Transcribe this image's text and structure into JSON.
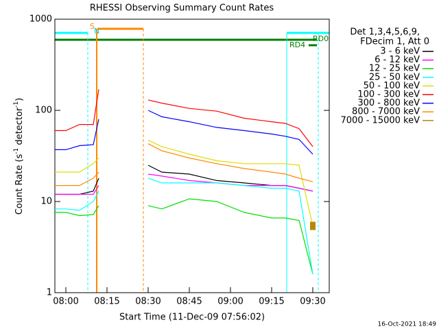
{
  "chart_data": {
    "type": "line",
    "title": "RHESSI Observing Summary Count Rates",
    "xlabel": "Start Time (11-Dec-09 07:56:02)",
    "ylabel": [
      "Count Rate (s",
      "-1",
      " detector",
      "-1",
      ")"
    ],
    "log_y": true,
    "ylim": [
      1,
      1000
    ],
    "yticks": [
      1,
      10,
      100,
      1000
    ],
    "xlim": [
      "07:56",
      "09:36"
    ],
    "xticks": [
      "08:00",
      "08:15",
      "08:30",
      "08:45",
      "09:00",
      "09:15",
      "09:30"
    ],
    "x": [
      "07:56",
      "08:00",
      "08:05",
      "08:10",
      "08:12",
      "08:20",
      "08:30",
      "08:35",
      "08:45",
      "08:55",
      "09:05",
      "09:15",
      "09:20",
      "09:25",
      "09:30"
    ],
    "legend_header": [
      "Det 1,3,4,5,6,9,",
      "FDecim 1, Att 0"
    ],
    "annotations": [
      "S",
      "N",
      "RD4",
      "RD0"
    ],
    "footer": "16-Oct-2021 18:49",
    "series": [
      {
        "name": "3 - 6 keV",
        "color": "#000000",
        "values": [
          12,
          12,
          12,
          13,
          18,
          null,
          25,
          21,
          20,
          17,
          16,
          15,
          15,
          14,
          13
        ]
      },
      {
        "name": "6 - 12 keV",
        "color": "#ff00ff",
        "values": [
          12,
          12,
          12,
          12,
          15,
          null,
          20,
          19,
          17,
          16,
          15,
          15,
          15,
          14,
          13
        ]
      },
      {
        "name": "12 - 25 keV",
        "color": "#00dd00",
        "values": [
          7.6,
          7.6,
          7,
          7.2,
          9,
          null,
          9,
          8.3,
          10.7,
          10,
          7.6,
          6.6,
          6.6,
          6.2,
          1.6
        ]
      },
      {
        "name": "25 - 50 keV",
        "color": "#00ffff",
        "values": [
          8.3,
          8.3,
          8,
          10,
          13,
          null,
          18,
          16,
          16,
          16,
          15,
          14,
          14,
          13,
          1.6
        ]
      },
      {
        "name": "50 - 100 keV",
        "color": "#dddd00",
        "values": [
          21,
          21,
          21,
          26,
          30,
          null,
          47,
          40,
          33,
          28,
          26,
          26,
          26,
          25,
          5.4
        ]
      },
      {
        "name": "100 - 300 keV",
        "color": "#ff0000",
        "values": [
          60,
          60,
          70,
          70,
          170,
          null,
          130,
          120,
          105,
          98,
          82,
          75,
          72,
          63,
          40
        ]
      },
      {
        "name": "300 - 800 keV",
        "color": "#0000ff",
        "values": [
          37,
          37,
          41,
          42,
          80,
          null,
          100,
          85,
          75,
          65,
          60,
          55,
          52,
          48,
          33
        ]
      },
      {
        "name": "800 - 7000 keV",
        "color": "#ff8800",
        "values": [
          15,
          15,
          15,
          18,
          21,
          null,
          43,
          36,
          30,
          26,
          23,
          21,
          20,
          18,
          16.5
        ]
      },
      {
        "name": "7000 - 15000 keV",
        "color": "#b8860b",
        "values": [
          null,
          null,
          null,
          null,
          null,
          null,
          null,
          null,
          null,
          null,
          null,
          null,
          null,
          null,
          5.4
        ]
      }
    ]
  }
}
